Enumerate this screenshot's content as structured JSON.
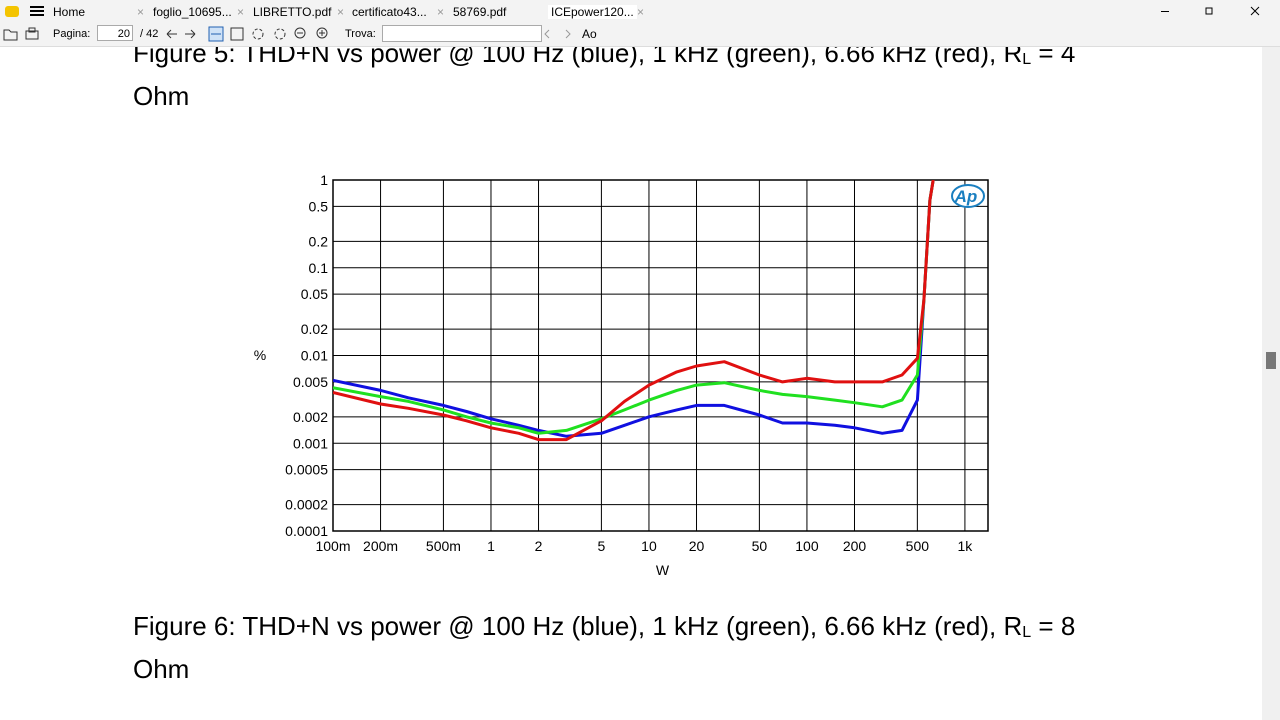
{
  "tabs": [
    "Home",
    "foglio_10695...",
    "LIBRETTO.pdf",
    "certificato43...",
    "58769.pdf",
    "ICEpower120..."
  ],
  "toolbar": {
    "page_label": "Pagina:",
    "page_value": "20",
    "page_total": "/ 42",
    "find_label": "Trova:",
    "case_label": "Ao"
  },
  "captions": [
    {
      "text": "Figure 5: THD+N vs power @ 100 Hz (blue), 1 kHz (green), 6.66 kHz (red), R",
      "sub": "L",
      "tail": " = 4 Ohm"
    },
    {
      "text": "Figure 6: THD+N vs power @ 100 Hz (blue), 1 kHz (green), 6.66 kHz (red), R",
      "sub": "L",
      "tail": " = 8 Ohm"
    }
  ],
  "chart_data": {
    "type": "line",
    "log_x": true,
    "log_y": true,
    "grid": true,
    "x_label": "W",
    "y_label": "%",
    "logo": "Ap",
    "xlim": [
      0.1,
      1400
    ],
    "ylim": [
      0.0001,
      1
    ],
    "xticks": [
      {
        "value": 0.1,
        "label": "100m"
      },
      {
        "value": 0.2,
        "label": "200m"
      },
      {
        "value": 0.5,
        "label": "500m"
      },
      1,
      2,
      5,
      10,
      20,
      50,
      100,
      200,
      500,
      {
        "value": 1000,
        "label": "1k"
      }
    ],
    "yticks": [
      1,
      0.5,
      0.2,
      0.1,
      0.05,
      0.02,
      0.01,
      0.005,
      0.002,
      0.001,
      0.0005,
      0.0002,
      0.0001
    ],
    "x": [
      0.1,
      0.2,
      0.3,
      0.5,
      0.7,
      1,
      1.5,
      2,
      3,
      5,
      7,
      10,
      15,
      20,
      30,
      50,
      70,
      100,
      150,
      200,
      300,
      400,
      500,
      550,
      600,
      630
    ],
    "series": [
      {
        "name": "100 Hz",
        "color": "#1010e0",
        "values": [
          0.0052,
          0.004,
          0.0033,
          0.0027,
          0.0023,
          0.0019,
          0.0016,
          0.0014,
          0.0012,
          0.0013,
          0.0016,
          0.002,
          0.0024,
          0.0027,
          0.0027,
          0.0021,
          0.0017,
          0.0017,
          0.0016,
          0.0015,
          0.0013,
          0.0014,
          0.0031,
          0.043,
          0.59,
          1
        ]
      },
      {
        "name": "1 kHz",
        "color": "#20e020",
        "values": [
          0.0043,
          0.0034,
          0.003,
          0.0024,
          0.002,
          0.0017,
          0.0015,
          0.0013,
          0.0014,
          0.0019,
          0.0024,
          0.0031,
          0.004,
          0.0046,
          0.0049,
          0.004,
          0.0036,
          0.0034,
          0.0031,
          0.0029,
          0.0026,
          0.0031,
          0.006,
          0.043,
          0.59,
          1
        ]
      },
      {
        "name": "6.66 kHz",
        "color": "#e01010",
        "values": [
          0.0038,
          0.0028,
          0.0025,
          0.0021,
          0.0018,
          0.0015,
          0.0013,
          0.0011,
          0.0011,
          0.0018,
          0.003,
          0.0046,
          0.0065,
          0.0076,
          0.0085,
          0.006,
          0.005,
          0.0055,
          0.005,
          0.005,
          0.005,
          0.006,
          0.0093,
          0.043,
          0.59,
          1
        ]
      }
    ]
  }
}
